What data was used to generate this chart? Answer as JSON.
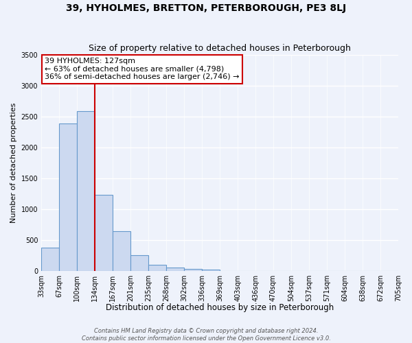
{
  "title": "39, HYHOLMES, BRETTON, PETERBOROUGH, PE3 8LJ",
  "subtitle": "Size of property relative to detached houses in Peterborough",
  "xlabel": "Distribution of detached houses by size in Peterborough",
  "ylabel": "Number of detached properties",
  "bar_values": [
    380,
    2380,
    2580,
    1230,
    640,
    260,
    100,
    55,
    30,
    20,
    0,
    0,
    0,
    0,
    0,
    0,
    0,
    0,
    0,
    0
  ],
  "bar_color": "#ccd9f0",
  "bar_edge_color": "#6699cc",
  "bar_labels": [
    "33sqm",
    "67sqm",
    "100sqm",
    "134sqm",
    "167sqm",
    "201sqm",
    "235sqm",
    "268sqm",
    "302sqm",
    "336sqm",
    "369sqm",
    "403sqm",
    "436sqm",
    "470sqm",
    "504sqm",
    "537sqm",
    "571sqm",
    "604sqm",
    "638sqm",
    "672sqm",
    "705sqm"
  ],
  "vline_color": "#cc0000",
  "ylim": [
    0,
    3500
  ],
  "yticks": [
    0,
    500,
    1000,
    1500,
    2000,
    2500,
    3000,
    3500
  ],
  "annotation_title": "39 HYHOLMES: 127sqm",
  "annotation_line1": "← 63% of detached houses are smaller (4,798)",
  "annotation_line2": "36% of semi-detached houses are larger (2,746) →",
  "annotation_box_color": "#ffffff",
  "annotation_box_edge": "#cc0000",
  "footer1": "Contains HM Land Registry data © Crown copyright and database right 2024.",
  "footer2": "Contains public sector information licensed under the Open Government Licence v3.0.",
  "background_color": "#eef2fb",
  "grid_color": "#ffffff",
  "title_fontsize": 10,
  "subtitle_fontsize": 9,
  "xlabel_fontsize": 8.5,
  "ylabel_fontsize": 8,
  "tick_fontsize": 7,
  "annot_fontsize": 8,
  "footer_fontsize": 6
}
